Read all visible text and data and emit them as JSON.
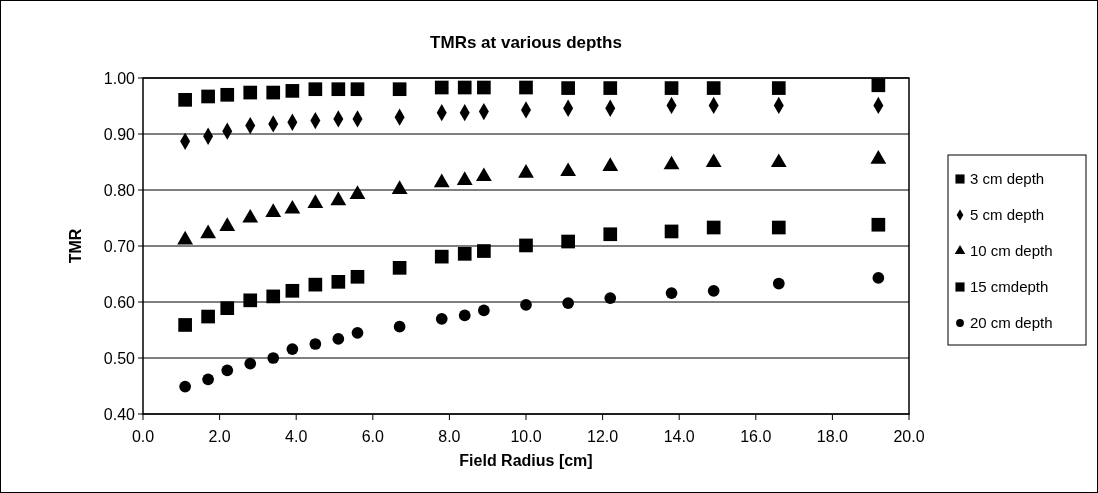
{
  "chart_data": {
    "type": "scatter",
    "title": "TMRs at various depths",
    "xlabel": "Field Radius [cm]",
    "ylabel": "TMR",
    "x": [
      1.1,
      1.7,
      2.2,
      2.8,
      3.4,
      3.9,
      4.5,
      5.1,
      5.6,
      6.7,
      7.8,
      8.4,
      8.9,
      10.0,
      11.1,
      12.2,
      13.8,
      14.9,
      16.6,
      19.2
    ],
    "xlim": [
      0,
      20
    ],
    "xticks": [
      {
        "value": 0,
        "label": "0.0"
      },
      {
        "value": 2,
        "label": "2.0"
      },
      {
        "value": 4,
        "label": "4.0"
      },
      {
        "value": 6,
        "label": "6.0"
      },
      {
        "value": 8,
        "label": "8.0"
      },
      {
        "value": 10,
        "label": "10.0"
      },
      {
        "value": 12,
        "label": "12.0"
      },
      {
        "value": 14,
        "label": "14.0"
      },
      {
        "value": 16,
        "label": "16.0"
      },
      {
        "value": 18,
        "label": "18.0"
      },
      {
        "value": 20,
        "label": "20.0"
      }
    ],
    "ylim": [
      0.4,
      1.0
    ],
    "yticks": [
      {
        "value": 0.4,
        "label": "0.40"
      },
      {
        "value": 0.5,
        "label": "0.50"
      },
      {
        "value": 0.6,
        "label": "0.60"
      },
      {
        "value": 0.7,
        "label": "0.70"
      },
      {
        "value": 0.8,
        "label": "0.80"
      },
      {
        "value": 0.9,
        "label": "0.90"
      },
      {
        "value": 1.0,
        "label": "1.00"
      }
    ],
    "grid": "y",
    "legend": "right",
    "series": [
      {
        "name": "3 cm depth",
        "color": "#000000",
        "marker": "square",
        "values": [
          0.961,
          0.967,
          0.97,
          0.974,
          0.974,
          0.977,
          0.98,
          0.98,
          0.98,
          0.98,
          0.983,
          0.983,
          0.983,
          0.983,
          0.982,
          0.982,
          0.982,
          0.982,
          0.982,
          0.987
        ]
      },
      {
        "name": "5 cm depth",
        "color": "#000000",
        "marker": "diamond",
        "values": [
          0.887,
          0.896,
          0.905,
          0.915,
          0.918,
          0.921,
          0.924,
          0.927,
          0.927,
          0.93,
          0.938,
          0.938,
          0.94,
          0.943,
          0.946,
          0.946,
          0.951,
          0.951,
          0.951,
          0.951
        ]
      },
      {
        "name": "10 cm depth",
        "color": "#000000",
        "marker": "triangle",
        "values": [
          0.711,
          0.722,
          0.735,
          0.75,
          0.76,
          0.766,
          0.776,
          0.781,
          0.792,
          0.801,
          0.813,
          0.817,
          0.824,
          0.83,
          0.833,
          0.842,
          0.845,
          0.849,
          0.849,
          0.855
        ]
      },
      {
        "name": "15 cmdepth",
        "color": "#000000",
        "marker": "square",
        "values": [
          0.559,
          0.574,
          0.589,
          0.603,
          0.61,
          0.62,
          0.631,
          0.636,
          0.645,
          0.661,
          0.681,
          0.686,
          0.691,
          0.701,
          0.708,
          0.721,
          0.726,
          0.733,
          0.733,
          0.738
        ]
      },
      {
        "name": "20 cm depth",
        "color": "#000000",
        "marker": "circle",
        "values": [
          0.449,
          0.462,
          0.478,
          0.49,
          0.5,
          0.516,
          0.525,
          0.534,
          0.545,
          0.556,
          0.57,
          0.576,
          0.585,
          0.595,
          0.598,
          0.607,
          0.616,
          0.62,
          0.633,
          0.643
        ]
      }
    ]
  }
}
